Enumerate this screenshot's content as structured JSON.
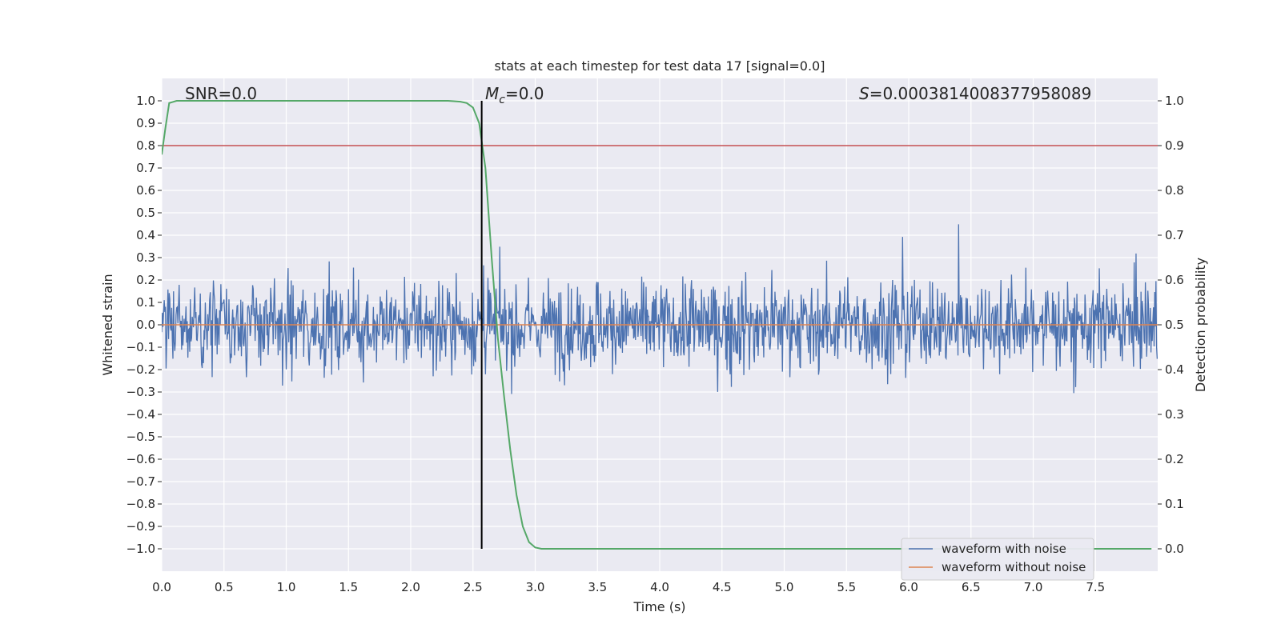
{
  "chart_data": {
    "type": "line",
    "title": "stats at each timestep for test data 17 [signal=0.0]",
    "xlabel": "Time (s)",
    "ylabel": "Whitened strain",
    "y2label": "Detection probability",
    "xlim": [
      0.0,
      8.0
    ],
    "ylim": [
      -1.1,
      1.1
    ],
    "y2lim": [
      -0.05,
      1.05
    ],
    "xticks": [
      0.0,
      0.5,
      1.0,
      1.5,
      2.0,
      2.5,
      3.0,
      3.5,
      4.0,
      4.5,
      5.0,
      5.5,
      6.0,
      6.5,
      7.0,
      7.5
    ],
    "xtick_labels": [
      "0.0",
      "0.5",
      "1.0",
      "1.5",
      "2.0",
      "2.5",
      "3.0",
      "3.5",
      "4.0",
      "4.5",
      "5.0",
      "5.5",
      "6.0",
      "6.5",
      "7.0",
      "7.5"
    ],
    "yticks": [
      1.0,
      0.9,
      0.8,
      0.7,
      0.6,
      0.5,
      0.4,
      0.3,
      0.2,
      0.1,
      0.0,
      -0.1,
      -0.2,
      -0.3,
      -0.4,
      -0.5,
      -0.6,
      -0.7,
      -0.8,
      -0.9,
      -1.0
    ],
    "ytick_labels": [
      "1.0",
      "0.9",
      "0.8",
      "0.7",
      "0.6",
      "0.5",
      "0.4",
      "0.3",
      "0.2",
      "0.1",
      "0.0",
      "−0.1",
      "−0.2",
      "−0.3",
      "−0.4",
      "−0.5",
      "−0.6",
      "−0.7",
      "−0.8",
      "−0.9",
      "−1.0"
    ],
    "y2ticks": [
      1.0,
      0.9,
      0.8,
      0.7,
      0.6,
      0.5,
      0.4,
      0.3,
      0.2,
      0.1,
      0.0
    ],
    "y2tick_labels": [
      "1.0",
      "0.9",
      "0.8",
      "0.7",
      "0.6",
      "0.5",
      "0.4",
      "0.3",
      "0.2",
      "0.1",
      "0.0"
    ],
    "annotations": {
      "snr": "SNR=0.0",
      "mc_symbol": "M",
      "mc_sub": "c",
      "mc_value": "=0.0",
      "s_symbol": "S",
      "s_value": "=0.0003814008377958089"
    },
    "threshold": {
      "axis": "y2",
      "value": 0.9,
      "color": "#c44e52"
    },
    "marker_line_x": 2.57,
    "series": [
      {
        "name": "waveform with noise",
        "color": "#4c72b0",
        "type": "noise",
        "amplitude_range": [
          -1.0,
          1.0
        ],
        "n_samples": 1600,
        "seed": 17
      },
      {
        "name": "waveform without noise",
        "color": "#dd8452",
        "value": 0.0
      },
      {
        "name": "Detection probability",
        "axis": "y2",
        "color": "#55a868",
        "x": [
          0.0,
          0.03,
          0.06,
          0.12,
          0.3,
          1.0,
          2.0,
          2.3,
          2.4,
          2.45,
          2.5,
          2.55,
          2.6,
          2.65,
          2.7,
          2.75,
          2.8,
          2.85,
          2.9,
          2.95,
          3.0,
          3.05,
          3.2,
          4.0,
          6.0,
          7.95
        ],
        "values": [
          0.88,
          0.94,
          0.995,
          1.0,
          1.0,
          1.0,
          1.0,
          1.0,
          0.998,
          0.995,
          0.985,
          0.95,
          0.85,
          0.65,
          0.47,
          0.34,
          0.22,
          0.12,
          0.05,
          0.015,
          0.003,
          0.0,
          0.0,
          0.0,
          0.0,
          0.0
        ]
      }
    ],
    "legend": {
      "position": "lower-right",
      "entries": [
        "waveform with noise",
        "waveform without noise"
      ]
    }
  }
}
